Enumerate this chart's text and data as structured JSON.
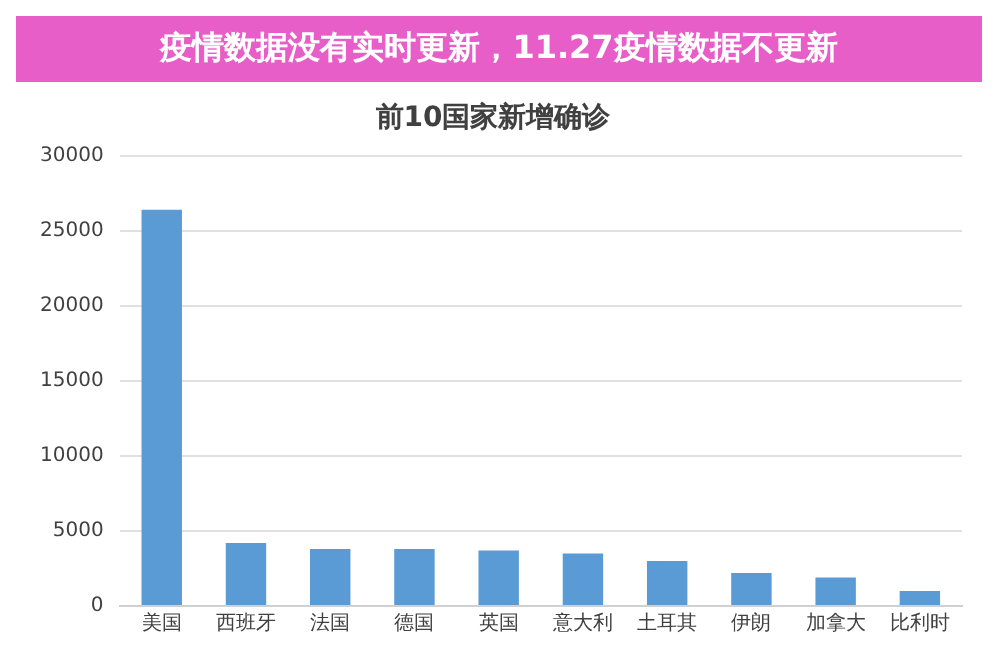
{
  "chart_data": {
    "type": "bar",
    "title": "前10国家新增确诊",
    "annotations": [
      "疫情数据没有实时更新，11.27疫情数据不更新"
    ],
    "categories": [
      "美国",
      "西班牙",
      "法国",
      "德国",
      "英国",
      "意大利",
      "土耳其",
      "伊朗",
      "加拿大",
      "比利时"
    ],
    "values": [
      26400,
      4200,
      3800,
      3800,
      3700,
      3500,
      3000,
      2200,
      1900,
      1000
    ],
    "color": "#5b9bd5",
    "ylim": [
      0,
      30000
    ],
    "yticks": [
      0,
      5000,
      10000,
      15000,
      20000,
      25000,
      30000
    ],
    "grid": "y",
    "legend": false
  }
}
